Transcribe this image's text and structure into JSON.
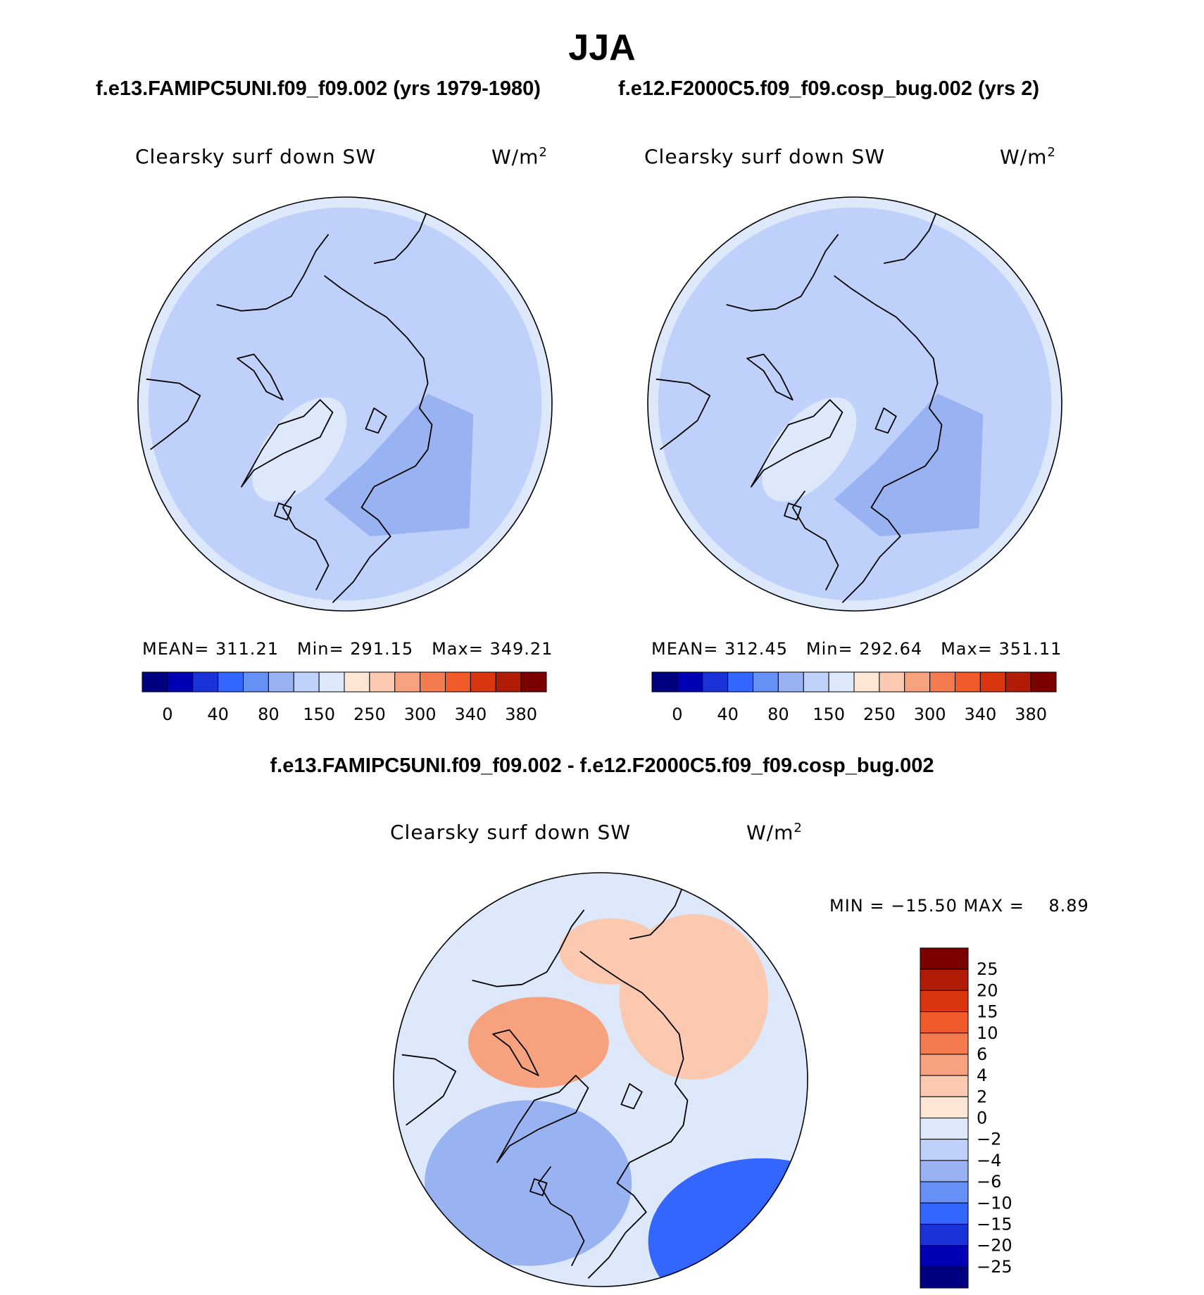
{
  "figure": {
    "season": "JJA",
    "case_header_left": "f.e13.FAMIPC5UNI.f09_f09.002 (yrs 1979-1980)",
    "case_header_right": "f.e12.F2000C5.f09_f09.cosp_bug.002 (yrs 2)",
    "diff_title": "f.e13.FAMIPC5UNI.f09_f09.002 - f.e12.F2000C5.f09_f09.cosp_bug.002"
  },
  "chart_data": [
    {
      "type": "contour-map",
      "projection": "north-polar-stereographic",
      "title": "Clearsky surf down SW",
      "units": "W/m",
      "units_sup": "2",
      "stats": {
        "mean_label": "MEAN=",
        "mean": "311.21",
        "min_label": "Min=",
        "min": "291.15",
        "max_label": "Max=",
        "max": "349.21"
      },
      "levels": [
        0,
        40,
        80,
        150,
        250,
        300,
        340,
        380
      ],
      "colors": [
        "#000080",
        "#0000b4",
        "#1a33d9",
        "#3366ff",
        "#6690f5",
        "#99b3f2",
        "#bfd0fa",
        "#dde8fb",
        "#fde6d6",
        "#fbc8b0",
        "#f7a27f",
        "#f47a50",
        "#f15a2a",
        "#d9360f",
        "#b01c06",
        "#7c0000"
      ],
      "regions": [
        {
          "name": "background",
          "value": 311
        },
        {
          "name": "outer-ring",
          "value": 345
        },
        {
          "name": "greenland-high",
          "value": 349
        },
        {
          "name": "scandinavia-russia-low",
          "value": 292
        }
      ]
    },
    {
      "type": "contour-map",
      "projection": "north-polar-stereographic",
      "title": "Clearsky surf down SW",
      "units": "W/m",
      "units_sup": "2",
      "stats": {
        "mean_label": "MEAN=",
        "mean": "312.45",
        "min_label": "Min=",
        "min": "292.64",
        "max_label": "Max=",
        "max": "351.11"
      },
      "levels": [
        0,
        40,
        80,
        150,
        250,
        300,
        340,
        380
      ],
      "colors": [
        "#000080",
        "#0000b4",
        "#1a33d9",
        "#3366ff",
        "#6690f5",
        "#99b3f2",
        "#bfd0fa",
        "#dde8fb",
        "#fde6d6",
        "#fbc8b0",
        "#f7a27f",
        "#f47a50",
        "#f15a2a",
        "#d9360f",
        "#b01c06",
        "#7c0000"
      ],
      "regions": [
        {
          "name": "background",
          "value": 312
        },
        {
          "name": "outer-ring",
          "value": 346
        },
        {
          "name": "greenland-high",
          "value": 351
        },
        {
          "name": "scandinavia-russia-low",
          "value": 293
        }
      ]
    },
    {
      "type": "contour-map",
      "projection": "north-polar-stereographic",
      "title": "Clearsky surf down SW",
      "units": "W/m",
      "units_sup": "2",
      "minmax_text": "MIN = −15.50 MAX =",
      "max_value": "8.89",
      "levels": [
        "25",
        "20",
        "15",
        "10",
        "6",
        "4",
        "2",
        "0",
        "−2",
        "−4",
        "−6",
        "−10",
        "−15",
        "−20",
        "−25"
      ],
      "colors": [
        "#7c0000",
        "#b01c06",
        "#d9360f",
        "#f15a2a",
        "#f47a50",
        "#f7a27f",
        "#fbc8b0",
        "#fde6d6",
        "#dde8fb",
        "#bfd0fa",
        "#99b3f2",
        "#6690f5",
        "#3366ff",
        "#1a33d9",
        "#0000b4",
        "#000080"
      ],
      "regions": [
        {
          "name": "background",
          "value": -1
        },
        {
          "name": "arctic-islands-positive",
          "value": 5
        },
        {
          "name": "siberia-positive",
          "value": 2
        },
        {
          "name": "south-negative",
          "value": -6
        },
        {
          "name": "bottom-right-negative",
          "value": -12
        }
      ]
    }
  ]
}
